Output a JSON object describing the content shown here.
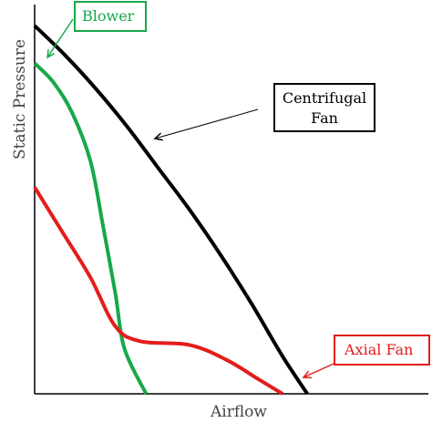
{
  "chart_data": {
    "type": "line",
    "xlabel": "Airflow",
    "ylabel": "Static Pressure",
    "xlim": [
      0,
      1
    ],
    "ylim": [
      0,
      1
    ],
    "grid": false,
    "series": [
      {
        "name": "Centrifugal Fan",
        "color": "#000000",
        "points": [
          [
            0.0,
            0.98
          ],
          [
            0.1,
            0.9
          ],
          [
            0.2,
            0.81
          ],
          [
            0.3,
            0.71
          ],
          [
            0.4,
            0.6
          ],
          [
            0.5,
            0.49
          ],
          [
            0.6,
            0.37
          ],
          [
            0.7,
            0.24
          ],
          [
            0.8,
            0.1
          ],
          [
            0.88,
            0.0
          ]
        ]
      },
      {
        "name": "Blower",
        "color": "#17a84a",
        "points": [
          [
            0.0,
            0.88
          ],
          [
            0.06,
            0.83
          ],
          [
            0.12,
            0.75
          ],
          [
            0.18,
            0.62
          ],
          [
            0.22,
            0.45
          ],
          [
            0.26,
            0.27
          ],
          [
            0.29,
            0.12
          ],
          [
            0.36,
            0.0
          ]
        ]
      },
      {
        "name": "Axial Fan",
        "color": "#e31c1c",
        "points": [
          [
            0.0,
            0.55
          ],
          [
            0.09,
            0.43
          ],
          [
            0.18,
            0.31
          ],
          [
            0.26,
            0.18
          ],
          [
            0.34,
            0.14
          ],
          [
            0.5,
            0.13
          ],
          [
            0.62,
            0.09
          ],
          [
            0.72,
            0.04
          ],
          [
            0.8,
            0.0
          ]
        ]
      }
    ],
    "annotations": [
      {
        "text": "Blower",
        "color": "#17a84a"
      },
      {
        "text_lines": [
          "Centrifugal",
          "Fan"
        ],
        "color": "#000000"
      },
      {
        "text": "Axial Fan",
        "color": "#e31c1c"
      }
    ]
  }
}
